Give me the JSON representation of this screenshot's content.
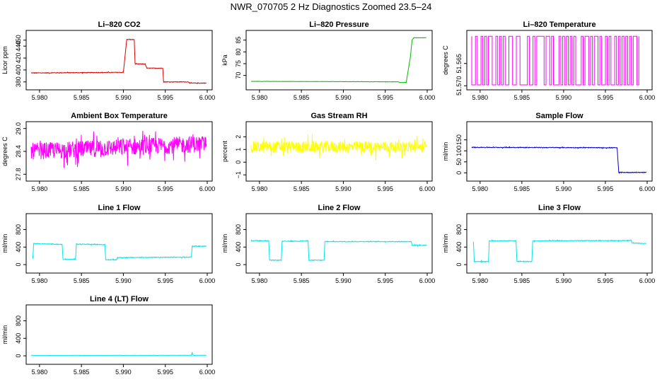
{
  "figure": {
    "title": "NWR_070705  2 Hz Diagnostics Zoomed 23.5–24"
  },
  "chart_data": [
    {
      "id": "co2",
      "type": "line",
      "title": "Li–820 CO2",
      "ylabel": "Licor ppm",
      "color": "#dd0000",
      "xlim": [
        5.979,
        6.0
      ],
      "ylim": [
        375,
        458
      ],
      "xticks": [
        5.98,
        5.985,
        5.99,
        5.995,
        6.0
      ],
      "xtick_labels": [
        "5.980",
        "5.985",
        "5.990",
        "5.995",
        "6.000"
      ],
      "yticks": [
        380,
        400,
        420,
        440,
        450
      ],
      "ytick_labels": [
        "380",
        "400",
        "420",
        "440",
        "450"
      ],
      "noise": 0.5,
      "x": [
        5.979,
        5.99,
        5.9904,
        5.9913,
        5.9914,
        5.9926,
        5.9928,
        5.9947,
        5.9948,
        5.9978,
        5.9979,
        5.9999
      ],
      "y": [
        395,
        396,
        451,
        451,
        410,
        410,
        403,
        403,
        380,
        380,
        378,
        378
      ]
    },
    {
      "id": "pressure",
      "type": "line",
      "title": "Li–820 Pressure",
      "ylabel": "kPa",
      "color": "#00bb00",
      "xlim": [
        5.979,
        6.0
      ],
      "ylim": [
        66,
        87
      ],
      "xticks": [
        5.98,
        5.985,
        5.99,
        5.995,
        6.0
      ],
      "xtick_labels": [
        "5.980",
        "5.985",
        "5.990",
        "5.995",
        "6.000"
      ],
      "yticks": [
        70,
        75,
        80,
        85
      ],
      "ytick_labels": [
        "70",
        "75",
        "80",
        "85"
      ],
      "noise": 0.05,
      "x": [
        5.979,
        5.9966,
        5.9967,
        5.9975,
        5.998,
        5.9982,
        5.9984,
        5.9999
      ],
      "y": [
        67.5,
        67.3,
        67.0,
        67.0,
        78,
        85,
        86,
        86
      ]
    },
    {
      "id": "licor-temp",
      "type": "line",
      "title": "Li–820 Temperature",
      "ylabel": "degrees C",
      "color": "#ff00ff",
      "xlim": [
        5.979,
        6.0
      ],
      "ylim": [
        51.5698,
        51.5587
      ],
      "xticks": [
        5.98,
        5.985,
        5.99,
        5.995,
        6.0
      ],
      "xtick_labels": [
        "5.980",
        "5.985",
        "5.990",
        "5.995",
        "6.000"
      ],
      "yticks": [
        51.57,
        51.565
      ],
      "ytick_labels": [
        "51.570",
        "51.565"
      ],
      "toggle": true,
      "toggle_low": 51.5698,
      "toggle_high": 51.5589,
      "toggle_count": 90
    },
    {
      "id": "ambient-temp",
      "type": "line",
      "title": "Ambient Box Temperature",
      "ylabel": "degrees C",
      "color": "#ff00ff",
      "xlim": [
        5.979,
        6.0
      ],
      "ylim": [
        27.75,
        29.05
      ],
      "xticks": [
        5.98,
        5.985,
        5.99,
        5.995,
        6.0
      ],
      "xtick_labels": [
        "5.980",
        "5.985",
        "5.990",
        "5.995",
        "6.000"
      ],
      "yticks": [
        27.8,
        28.4,
        29.0
      ],
      "ytick_labels": [
        "27.8",
        "28.4",
        "29.0"
      ],
      "noise": 0.22,
      "x": [
        5.979,
        5.9999
      ],
      "y": [
        28.4,
        28.6
      ]
    },
    {
      "id": "gas-rh",
      "type": "line",
      "title": "Gas Stream RH",
      "ylabel": "percent",
      "color": "#ffff00",
      "xlim": [
        5.979,
        6.0
      ],
      "ylim": [
        -1.1,
        2.8
      ],
      "xticks": [
        5.98,
        5.985,
        5.99,
        5.995,
        6.0
      ],
      "xtick_labels": [
        "5.980",
        "5.985",
        "5.990",
        "5.995",
        "6.000"
      ],
      "yticks": [
        -1,
        0,
        1,
        2
      ],
      "ytick_labels": [
        "−1",
        "0",
        "1",
        "2"
      ],
      "noise": 0.45,
      "x": [
        5.979,
        5.9999
      ],
      "y": [
        1.2,
        1.2
      ]
    },
    {
      "id": "sample-flow",
      "type": "line",
      "title": "Sample Flow",
      "ylabel": "ml/min",
      "color": "#0000cc",
      "xlim": [
        5.979,
        6.0
      ],
      "ylim": [
        -15,
        210
      ],
      "xticks": [
        5.98,
        5.985,
        5.99,
        5.995,
        6.0
      ],
      "xtick_labels": [
        "5.980",
        "5.985",
        "5.990",
        "5.995",
        "6.000"
      ],
      "yticks": [
        0,
        50,
        100,
        150
      ],
      "ytick_labels": [
        "0",
        "50",
        "100",
        "150"
      ],
      "noise": 1.5,
      "x": [
        5.979,
        5.9964,
        5.9966,
        5.9999
      ],
      "y": [
        116,
        114,
        2,
        2
      ]
    },
    {
      "id": "line1-flow",
      "type": "line",
      "title": "Line 1 Flow",
      "ylabel": "ml/min",
      "color": "#00e5ee",
      "xlim": [
        5.979,
        6.0
      ],
      "ylim": [
        -80,
        1050
      ],
      "xticks": [
        5.98,
        5.985,
        5.99,
        5.995,
        6.0
      ],
      "xtick_labels": [
        "5.980",
        "5.985",
        "5.990",
        "5.995",
        "6.000"
      ],
      "yticks": [
        0,
        400,
        800
      ],
      "ytick_labels": [
        "0",
        "400",
        "800"
      ],
      "noise": 8,
      "x": [
        5.9792,
        5.9793,
        5.9827,
        5.9828,
        5.9843,
        5.9844,
        5.9878,
        5.9879,
        5.9892,
        5.9893,
        5.9981,
        5.9982,
        5.9999
      ],
      "y": [
        130,
        480,
        460,
        120,
        120,
        470,
        455,
        110,
        110,
        160,
        170,
        420,
        420
      ]
    },
    {
      "id": "line2-flow",
      "type": "line",
      "title": "Line 2 Flow",
      "ylabel": "ml/min",
      "color": "#00e5ee",
      "xlim": [
        5.979,
        6.0
      ],
      "ylim": [
        -80,
        1050
      ],
      "xticks": [
        5.98,
        5.985,
        5.99,
        5.995,
        6.0
      ],
      "xtick_labels": [
        "5.980",
        "5.985",
        "5.990",
        "5.995",
        "6.000"
      ],
      "yticks": [
        0,
        400,
        800
      ],
      "ytick_labels": [
        "0",
        "400",
        "800"
      ],
      "noise": 8,
      "x": [
        5.979,
        5.9811,
        5.9812,
        5.9826,
        5.9827,
        5.9858,
        5.9859,
        5.9877,
        5.9878,
        5.9981,
        5.9982,
        5.9999
      ],
      "y": [
        550,
        540,
        100,
        100,
        530,
        540,
        100,
        100,
        525,
        525,
        440,
        440
      ]
    },
    {
      "id": "line3-flow",
      "type": "line",
      "title": "Line 3 Flow",
      "ylabel": "ml/min",
      "color": "#00e5ee",
      "xlim": [
        5.979,
        6.0
      ],
      "ylim": [
        -80,
        1050
      ],
      "xticks": [
        5.98,
        5.985,
        5.99,
        5.995,
        6.0
      ],
      "xtick_labels": [
        "5.980",
        "5.985",
        "5.990",
        "5.995",
        "6.000"
      ],
      "yticks": [
        0,
        400,
        800
      ],
      "ytick_labels": [
        "0",
        "400",
        "800"
      ],
      "noise": 8,
      "x": [
        5.9792,
        5.9793,
        5.981,
        5.9811,
        5.9843,
        5.9844,
        5.9862,
        5.9863,
        5.9981,
        5.9982,
        5.9999
      ],
      "y": [
        530,
        70,
        70,
        540,
        545,
        70,
        70,
        540,
        550,
        490,
        480
      ]
    },
    {
      "id": "line4-flow",
      "type": "line",
      "title": "Line 4 (LT) Flow",
      "ylabel": "ml/min",
      "color": "#00e5ee",
      "xlim": [
        5.979,
        6.0
      ],
      "ylim": [
        -80,
        1050
      ],
      "xticks": [
        5.98,
        5.985,
        5.99,
        5.995,
        6.0
      ],
      "xtick_labels": [
        "5.980",
        "5.985",
        "5.990",
        "5.995",
        "6.000"
      ],
      "yticks": [
        0,
        400,
        800
      ],
      "ytick_labels": [
        "0",
        "400",
        "800"
      ],
      "noise": 3,
      "x": [
        5.979,
        5.9981,
        5.9982,
        5.9983,
        5.9984,
        5.9999
      ],
      "y": [
        10,
        12,
        70,
        14,
        12,
        12
      ]
    }
  ]
}
